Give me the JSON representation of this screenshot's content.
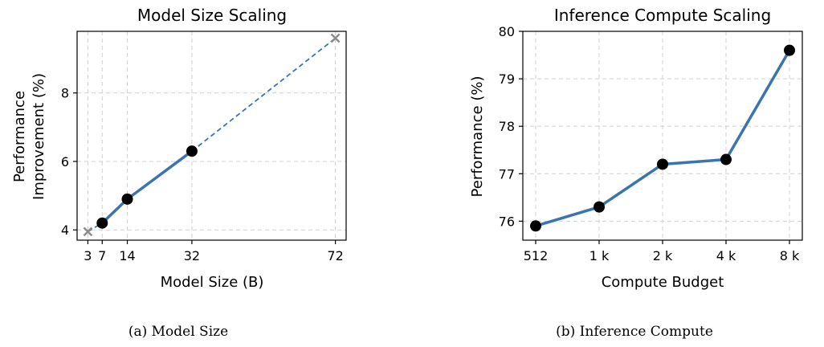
{
  "chart_data": [
    {
      "type": "line",
      "title": "Model Size Scaling",
      "xlabel": "Model Size (B)",
      "ylabel_lines": [
        "Performance",
        "Improvement (%)"
      ],
      "xlim": [
        0,
        75
      ],
      "ylim": [
        3.7,
        9.8
      ],
      "x_ticks": [
        3,
        7,
        14,
        32,
        72
      ],
      "y_ticks": [
        4,
        6,
        8
      ],
      "grid": true,
      "caption": "(a) Model Size",
      "line_color": "#3a75b0",
      "extrapolated_color": "#8c8c8c",
      "series": [
        {
          "points": [
            {
              "x": 7,
              "y": 4.2
            },
            {
              "x": 14,
              "y": 4.9
            },
            {
              "x": 32,
              "y": 6.3
            }
          ]
        }
      ],
      "extrapolated_points": [
        {
          "x": 3,
          "y": 3.95
        },
        {
          "x": 72,
          "y": 9.6
        }
      ]
    },
    {
      "type": "line",
      "title": "Inference Compute Scaling",
      "xlabel": "Compute Budget",
      "ylabel": "Performance (%)",
      "categories": [
        "512",
        "1 k",
        "2 k",
        "4 k",
        "8 k"
      ],
      "ylim": [
        75.6,
        80.0
      ],
      "y_ticks": [
        76,
        77,
        78,
        79,
        80
      ],
      "grid": true,
      "caption": "(b) Inference Compute",
      "line_color": "#3a75b0",
      "series": [
        {
          "values": [
            75.9,
            76.3,
            77.2,
            77.3,
            79.6
          ]
        }
      ]
    }
  ]
}
